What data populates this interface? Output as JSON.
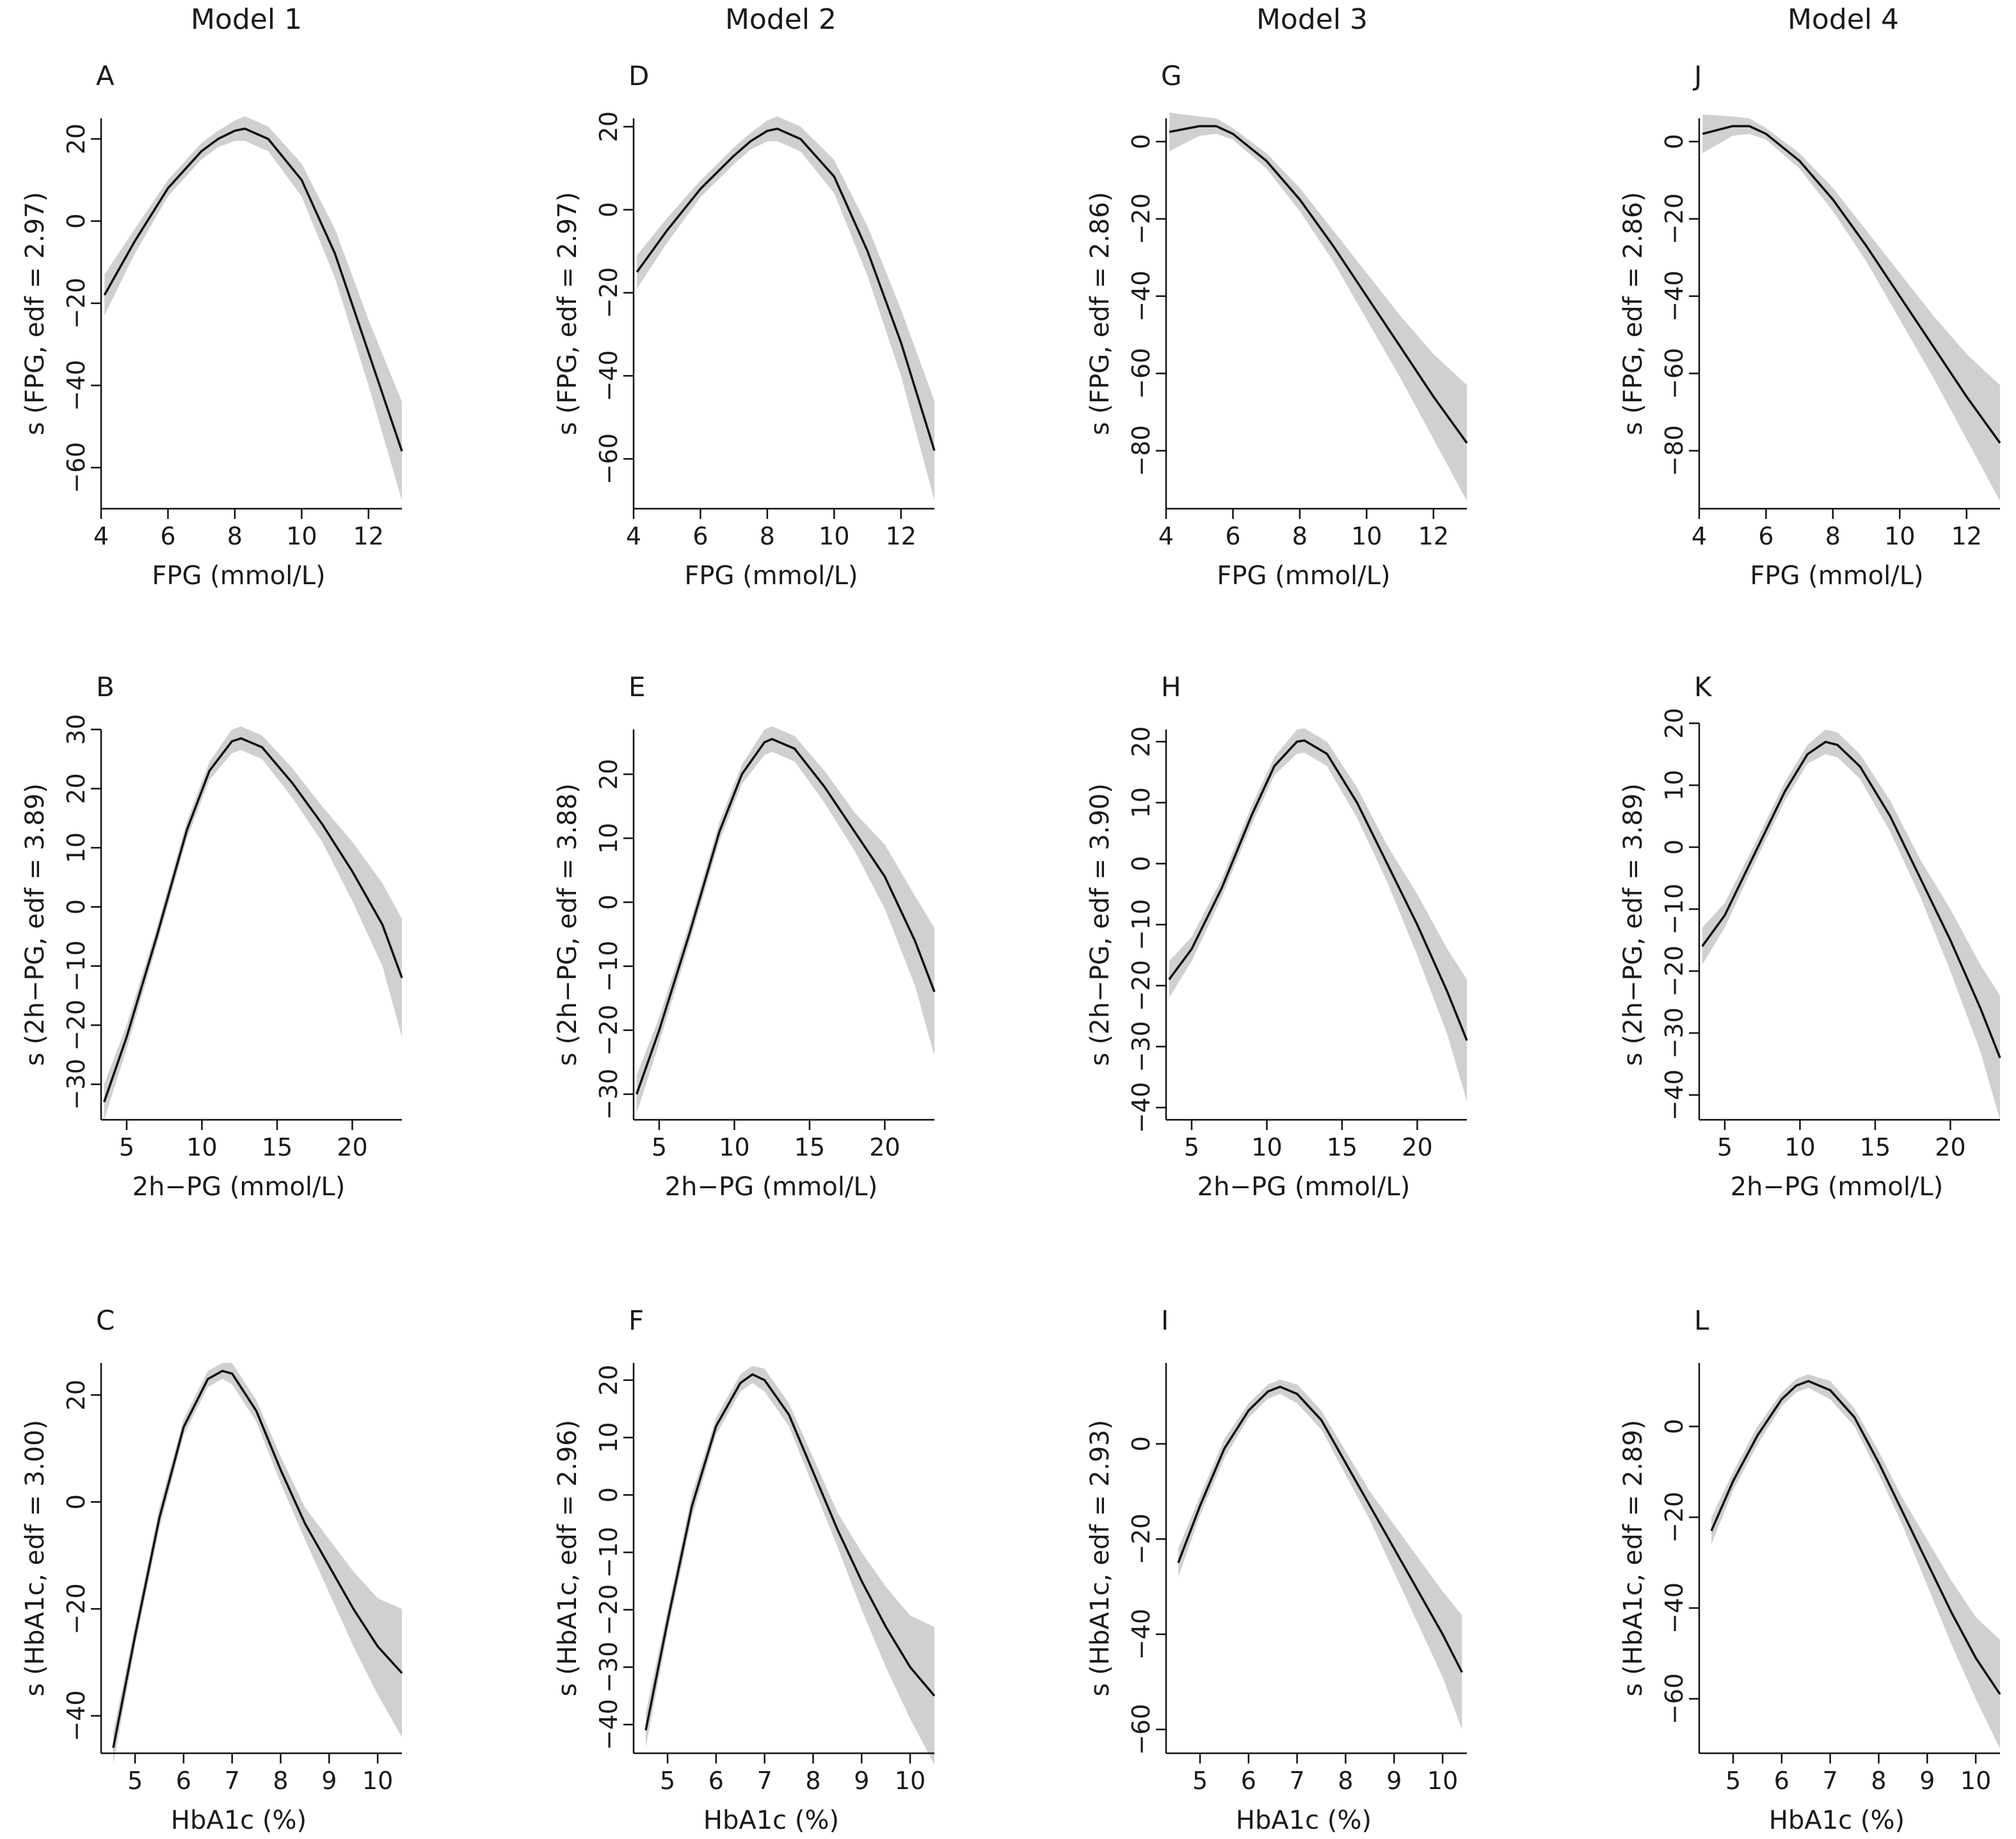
{
  "column_titles": [
    "Model  1",
    "Model  2",
    "Model  3",
    "Model  4"
  ],
  "chart_data": [
    {
      "panel": "A",
      "type": "line",
      "xlabel": "FPG (mmol/L)",
      "ylabel": "s (FPG, edf = 2.97)",
      "xlim": [
        4,
        13
      ],
      "ylim": [
        -70,
        25
      ],
      "xticks": [
        4,
        6,
        8,
        10,
        12
      ],
      "yticks": [
        -60,
        -40,
        -20,
        0,
        20
      ],
      "series": [
        {
          "x": [
            4.1,
            5,
            6,
            7,
            7.5,
            8,
            8.3,
            9,
            10,
            11,
            12,
            13
          ],
          "y": [
            -18,
            -5,
            8,
            17,
            20,
            22,
            22.5,
            20,
            10,
            -8,
            -32,
            -56
          ],
          "band": [
            5,
            3,
            2,
            2,
            2,
            2.5,
            3,
            3,
            4,
            6,
            8,
            12
          ]
        }
      ]
    },
    {
      "panel": "B",
      "type": "line",
      "xlabel": "2h−PG (mmol/L)",
      "ylabel": "s (2h−PG, edf = 3.89)",
      "xlim": [
        3.3,
        23.3
      ],
      "ylim": [
        -36,
        30
      ],
      "xticks": [
        5,
        10,
        15,
        20
      ],
      "yticks": [
        -30,
        -20,
        -10,
        0,
        10,
        20,
        30
      ],
      "series": [
        {
          "x": [
            3.5,
            5,
            7,
            9,
            10.5,
            12,
            12.6,
            14,
            16,
            18,
            20,
            22,
            23.3
          ],
          "y": [
            -33,
            -22,
            -5,
            13,
            23,
            28,
            28.5,
            27,
            21,
            14,
            6,
            -3,
            -12
          ],
          "band": [
            3,
            2,
            1.5,
            1.5,
            1.5,
            2,
            2,
            2,
            2.5,
            3,
            5,
            7,
            10
          ]
        }
      ]
    },
    {
      "panel": "C",
      "type": "line",
      "xlabel": "HbA1c (%)",
      "ylabel": "s (HbA1c, edf = 3.00)",
      "xlim": [
        4.3,
        10.5
      ],
      "ylim": [
        -47,
        26
      ],
      "xticks": [
        5,
        6,
        7,
        8,
        9,
        10
      ],
      "yticks": [
        -40,
        -20,
        0,
        20
      ],
      "series": [
        {
          "x": [
            4.55,
            5,
            5.5,
            6,
            6.5,
            6.8,
            7,
            7.5,
            8,
            8.5,
            9,
            9.5,
            10,
            10.5
          ],
          "y": [
            -46,
            -25,
            -3,
            14,
            23,
            24.5,
            24,
            17,
            6,
            -4,
            -12,
            -20,
            -27,
            -32
          ],
          "band": [
            3,
            2,
            2,
            1.5,
            1.5,
            1.5,
            2,
            2,
            2.5,
            3,
            5,
            7,
            9,
            12
          ]
        }
      ]
    },
    {
      "panel": "D",
      "type": "line",
      "xlabel": "FPG (mmol/L)",
      "ylabel": "s (FPG, edf = 2.97)",
      "xlim": [
        4,
        13
      ],
      "ylim": [
        -72,
        22
      ],
      "xticks": [
        4,
        6,
        8,
        10,
        12
      ],
      "yticks": [
        -60,
        -40,
        -20,
        0,
        20
      ],
      "series": [
        {
          "x": [
            4.1,
            5,
            6,
            7,
            7.5,
            8,
            8.3,
            9,
            10,
            11,
            12,
            13
          ],
          "y": [
            -15,
            -5,
            5,
            13,
            16.5,
            19,
            19.5,
            17,
            8,
            -10,
            -32,
            -58
          ],
          "band": [
            4,
            3,
            2,
            2,
            2,
            2.5,
            3,
            3,
            4,
            6,
            8,
            12
          ]
        }
      ]
    },
    {
      "panel": "E",
      "type": "line",
      "xlabel": "2h−PG (mmol/L)",
      "ylabel": "s (2h−PG, edf = 3.88)",
      "xlim": [
        3.3,
        23.3
      ],
      "ylim": [
        -34,
        27
      ],
      "xticks": [
        5,
        10,
        15,
        20
      ],
      "yticks": [
        -30,
        -20,
        -10,
        0,
        10,
        20
      ],
      "series": [
        {
          "x": [
            3.5,
            5,
            7,
            9,
            10.5,
            12,
            12.5,
            14,
            16,
            18,
            20,
            22,
            23.3
          ],
          "y": [
            -30,
            -20,
            -5,
            11,
            20,
            25,
            25.5,
            24,
            18,
            11,
            4,
            -6,
            -14
          ],
          "band": [
            3,
            2,
            1.5,
            1.5,
            1.5,
            2,
            2,
            2,
            2.5,
            3,
            5,
            7,
            10
          ]
        }
      ]
    },
    {
      "panel": "F",
      "type": "line",
      "xlabel": "HbA1c (%)",
      "ylabel": "s (HbA1c, edf = 2.96)",
      "xlim": [
        4.3,
        10.5
      ],
      "ylim": [
        -45,
        23
      ],
      "xticks": [
        5,
        6,
        7,
        8,
        9,
        10
      ],
      "yticks": [
        -40,
        -30,
        -20,
        -10,
        0,
        10,
        20
      ],
      "series": [
        {
          "x": [
            4.55,
            5,
            5.5,
            6,
            6.5,
            6.75,
            7,
            7.5,
            8,
            8.5,
            9,
            9.5,
            10,
            10.5
          ],
          "y": [
            -41,
            -22,
            -2,
            12,
            19.5,
            21,
            20,
            14,
            4,
            -6,
            -15,
            -23,
            -30,
            -35
          ],
          "band": [
            3,
            2,
            2,
            1.5,
            1.5,
            1.5,
            2,
            2,
            2.5,
            3,
            5,
            7,
            9,
            12
          ]
        }
      ]
    },
    {
      "panel": "G",
      "type": "line",
      "xlabel": "FPG (mmol/L)",
      "ylabel": "s (FPG, edf = 2.86)",
      "xlim": [
        4,
        13
      ],
      "ylim": [
        -95,
        6
      ],
      "xticks": [
        4,
        6,
        8,
        10,
        12
      ],
      "yticks": [
        -80,
        -60,
        -40,
        -20,
        0
      ],
      "series": [
        {
          "x": [
            4.1,
            5,
            5.5,
            6,
            7,
            8,
            9,
            10,
            11,
            12,
            13
          ],
          "y": [
            2.5,
            4,
            4,
            2,
            -5,
            -15,
            -27,
            -40,
            -53,
            -66,
            -78
          ],
          "band": [
            5,
            2.5,
            2,
            1.5,
            2,
            3,
            4,
            6,
            8,
            11,
            15
          ]
        }
      ]
    },
    {
      "panel": "H",
      "type": "line",
      "xlabel": "2h−PG (mmol/L)",
      "ylabel": "s (2h−PG, edf = 3.90)",
      "xlim": [
        3.3,
        23.3
      ],
      "ylim": [
        -42,
        22
      ],
      "xticks": [
        5,
        10,
        15,
        20
      ],
      "yticks": [
        -40,
        -30,
        -20,
        -10,
        0,
        10,
        20
      ],
      "series": [
        {
          "x": [
            3.5,
            5,
            7,
            9,
            10.5,
            12,
            12.5,
            14,
            16,
            18,
            20,
            22,
            23.3
          ],
          "y": [
            -19,
            -14,
            -4,
            8,
            16,
            20,
            20.2,
            18,
            10,
            0,
            -10,
            -21,
            -29
          ],
          "band": [
            3,
            2,
            1.5,
            1.5,
            1.5,
            2,
            2,
            2,
            2.5,
            3,
            5,
            7,
            10
          ]
        }
      ]
    },
    {
      "panel": "I",
      "type": "line",
      "xlabel": "HbA1c (%)",
      "ylabel": "s (HbA1c, edf = 2.93)",
      "xlim": [
        4.3,
        10.5
      ],
      "ylim": [
        -65,
        17
      ],
      "xticks": [
        5,
        6,
        7,
        8,
        9,
        10
      ],
      "yticks": [
        -60,
        -40,
        -20,
        0
      ],
      "series": [
        {
          "x": [
            4.55,
            5,
            5.5,
            6,
            6.4,
            6.65,
            7,
            7.5,
            8,
            8.5,
            9,
            9.5,
            10,
            10.4
          ],
          "y": [
            -25,
            -13,
            -1,
            7,
            11,
            12,
            10.5,
            5,
            -4,
            -13,
            -22,
            -31,
            -40,
            -48
          ],
          "band": [
            3,
            2,
            2,
            1.5,
            1.5,
            1.5,
            2,
            2,
            2.5,
            3,
            5,
            7,
            9,
            12
          ]
        }
      ]
    },
    {
      "panel": "J",
      "type": "line",
      "xlabel": "FPG (mmol/L)",
      "ylabel": "s (FPG, edf = 2.86)",
      "xlim": [
        4,
        13
      ],
      "ylim": [
        -95,
        6
      ],
      "xticks": [
        4,
        6,
        8,
        10,
        12
      ],
      "yticks": [
        -80,
        -60,
        -40,
        -20,
        0
      ],
      "series": [
        {
          "x": [
            4.1,
            5,
            5.5,
            6,
            7,
            8,
            9,
            10,
            11,
            12,
            13
          ],
          "y": [
            2,
            4,
            4,
            2,
            -5,
            -15,
            -27,
            -40,
            -53,
            -66,
            -78
          ],
          "band": [
            5,
            2.5,
            2,
            1.5,
            2,
            3,
            4,
            6,
            8,
            11,
            15
          ]
        }
      ]
    },
    {
      "panel": "K",
      "type": "line",
      "xlabel": "2h−PG (mmol/L)",
      "ylabel": "s (2h−PG, edf = 3.89)",
      "xlim": [
        3.3,
        23.3
      ],
      "ylim": [
        -44,
        19
      ],
      "xticks": [
        5,
        10,
        15,
        20
      ],
      "yticks": [
        -40,
        -30,
        -20,
        -10,
        0,
        10,
        20
      ],
      "series": [
        {
          "x": [
            3.5,
            5,
            7,
            9,
            10.5,
            11.7,
            12.5,
            14,
            16,
            18,
            20,
            22,
            23.3
          ],
          "y": [
            -16,
            -11,
            -1,
            9,
            15,
            17,
            16.5,
            13,
            5,
            -5,
            -15,
            -26,
            -34
          ],
          "band": [
            3,
            2,
            1.5,
            1.5,
            1.5,
            2,
            2,
            2,
            2.5,
            3,
            5,
            7,
            10
          ]
        }
      ]
    },
    {
      "panel": "L",
      "type": "line",
      "xlabel": "HbA1c (%)",
      "ylabel": "s (HbA1c, edf = 2.89)",
      "xlim": [
        4.3,
        10.5
      ],
      "ylim": [
        -72,
        14
      ],
      "xticks": [
        5,
        6,
        7,
        8,
        9,
        10
      ],
      "yticks": [
        -60,
        -40,
        -20,
        0
      ],
      "series": [
        {
          "x": [
            4.55,
            5,
            5.5,
            6,
            6.3,
            6.55,
            7,
            7.5,
            8,
            8.5,
            9,
            9.5,
            10,
            10.5
          ],
          "y": [
            -23,
            -12,
            -2,
            6,
            9,
            10,
            8,
            2,
            -8,
            -19,
            -30,
            -41,
            -51,
            -59
          ],
          "band": [
            3,
            2,
            2,
            1.5,
            1.5,
            1.5,
            2,
            2,
            2.5,
            3,
            5,
            7,
            9,
            12
          ]
        }
      ]
    }
  ]
}
